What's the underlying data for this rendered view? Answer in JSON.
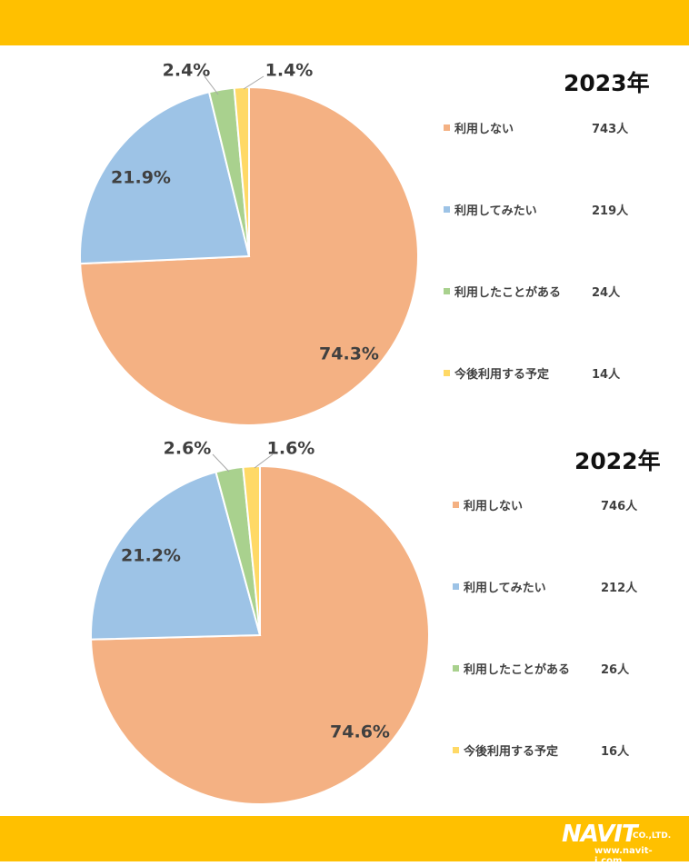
{
  "chart_data": [
    {
      "type": "pie",
      "title": "2023年",
      "categories": [
        "利用しない",
        "利用してみたい",
        "利用したことがある",
        "今後利用する予定"
      ],
      "values": [
        743,
        219,
        24,
        14
      ],
      "percent_labels": [
        "74.3%",
        "21.9%",
        "2.4%",
        "1.4%"
      ],
      "count_labels": [
        "743人",
        "219人",
        "24人",
        "14人"
      ],
      "legend_position": "right"
    },
    {
      "type": "pie",
      "title": "2022年",
      "categories": [
        "利用しない",
        "利用してみたい",
        "利用したことがある",
        "今後利用する予定"
      ],
      "values": [
        746,
        212,
        26,
        16
      ],
      "percent_labels": [
        "74.6%",
        "21.2%",
        "2.6%",
        "1.6%"
      ],
      "count_labels": [
        "746人",
        "212人",
        "26人",
        "16人"
      ],
      "legend_position": "right"
    }
  ],
  "colors": [
    "#F4B183",
    "#9DC3E6",
    "#A9D18E",
    "#FFD966"
  ],
  "logo": {
    "brand": "NAVIT",
    "suffix": "CO.,LTD.",
    "url": "www.navit-j.com"
  }
}
